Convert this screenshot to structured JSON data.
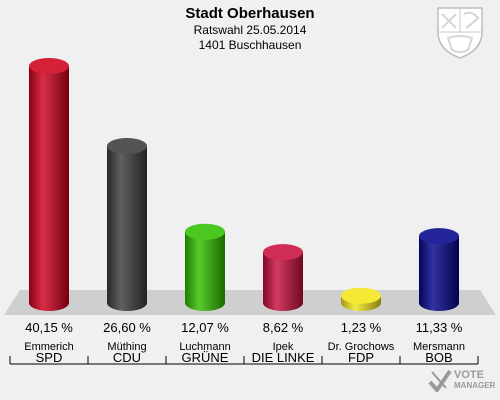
{
  "header": {
    "title": "Stadt Oberhausen",
    "subtitle": "Ratswahl 25.05.2014",
    "district": "1401 Buschhausen"
  },
  "logo": {
    "line1": "VOTE",
    "line2": "MANAGER"
  },
  "colors": {
    "SPD": "#d0001e",
    "CDU": "#3d3d3d",
    "GRÜNE": "#33c000",
    "DIE LINKE": "#c8103f",
    "FDP": "#f4e61a",
    "BOB": "#06068c"
  },
  "chart_data": {
    "type": "bar",
    "ylim": [
      0,
      40.15
    ],
    "categories": [
      "SPD",
      "CDU",
      "GRÜNE",
      "DIE LINKE",
      "FDP",
      "BOB"
    ],
    "candidates": [
      "Emmerich",
      "Müthing",
      "Luchmann",
      "Ipek",
      "Dr. Grochows",
      "Mersmann"
    ],
    "values": [
      40.15,
      26.6,
      12.07,
      8.62,
      1.23,
      11.33
    ],
    "value_labels": [
      "40,15 %",
      "26,60 %",
      "12,07 %",
      "8,62 %",
      "1,23 %",
      "11,33 %"
    ]
  }
}
